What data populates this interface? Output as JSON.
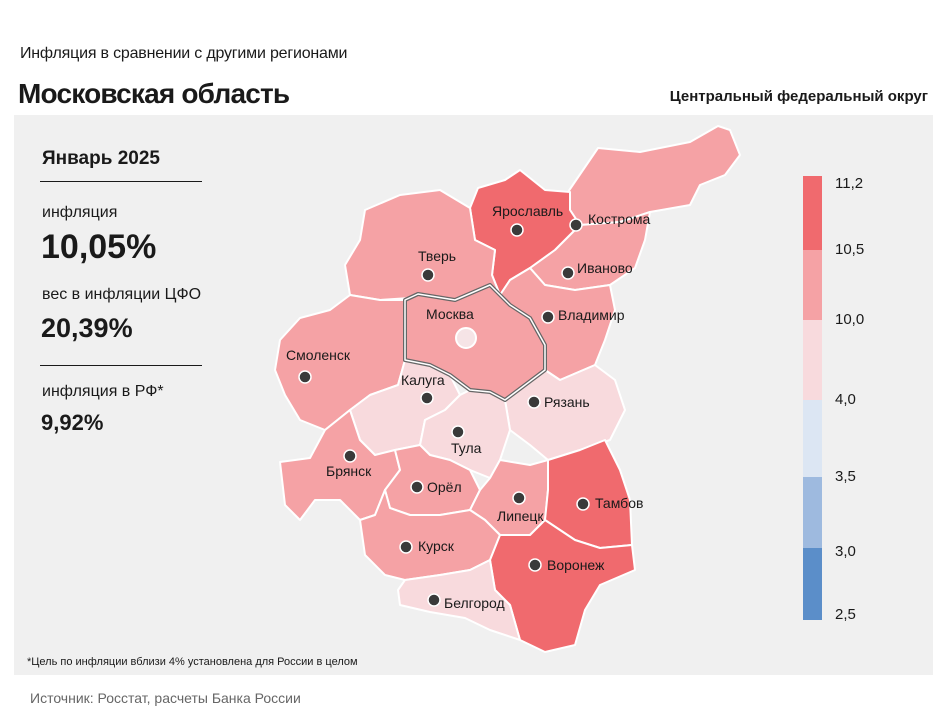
{
  "header": {
    "subtitle": "Инфляция  в сравнении  с другими  регионами",
    "title": "Московская область",
    "district": "Центральный федеральный округ"
  },
  "stats": {
    "period": "Январь 2025",
    "inflation_label": "инфляция",
    "inflation_value": "10,05%",
    "weight_label": "вес в инфляции  ЦФО",
    "weight_value": "20,39%",
    "rf_label": "инфляция  в РФ*",
    "rf_value": "9,92%"
  },
  "legend": {
    "labels": [
      "11,2",
      "10,5",
      "10,0",
      "4,0",
      "3,5",
      "3,0",
      "2,5"
    ],
    "colors": [
      "#f06a6e",
      "#f5a2a5",
      "#f8dadd",
      "#dce6f3",
      "#9ebadf",
      "#5b8ec9"
    ]
  },
  "regions": {
    "moscow": "Москва",
    "tver": "Тверь",
    "yaroslavl": "Ярославль",
    "kostroma": "Кострома",
    "ivanovo": "Иваново",
    "vladimir": "Владимир",
    "smolensk": "Смоленск",
    "kaluga": "Калуга",
    "ryazan": "Рязань",
    "tula": "Тула",
    "bryansk": "Брянск",
    "orel": "Орёл",
    "lipetsk": "Липецк",
    "tambov": "Тамбов",
    "kursk": "Курск",
    "voronezh": "Воронеж",
    "belgorod": "Белгород"
  },
  "region_colors": {
    "high": "#f06a6e",
    "medium": "#f5a2a5",
    "low": "#f8dadd",
    "border": "#ffffff",
    "highlight_border": "#666666"
  },
  "footer": {
    "note": "*Цель по инфляции вблизи 4% установлена для России в целом",
    "source": "Источник: Росстат, расчеты Банка России"
  }
}
